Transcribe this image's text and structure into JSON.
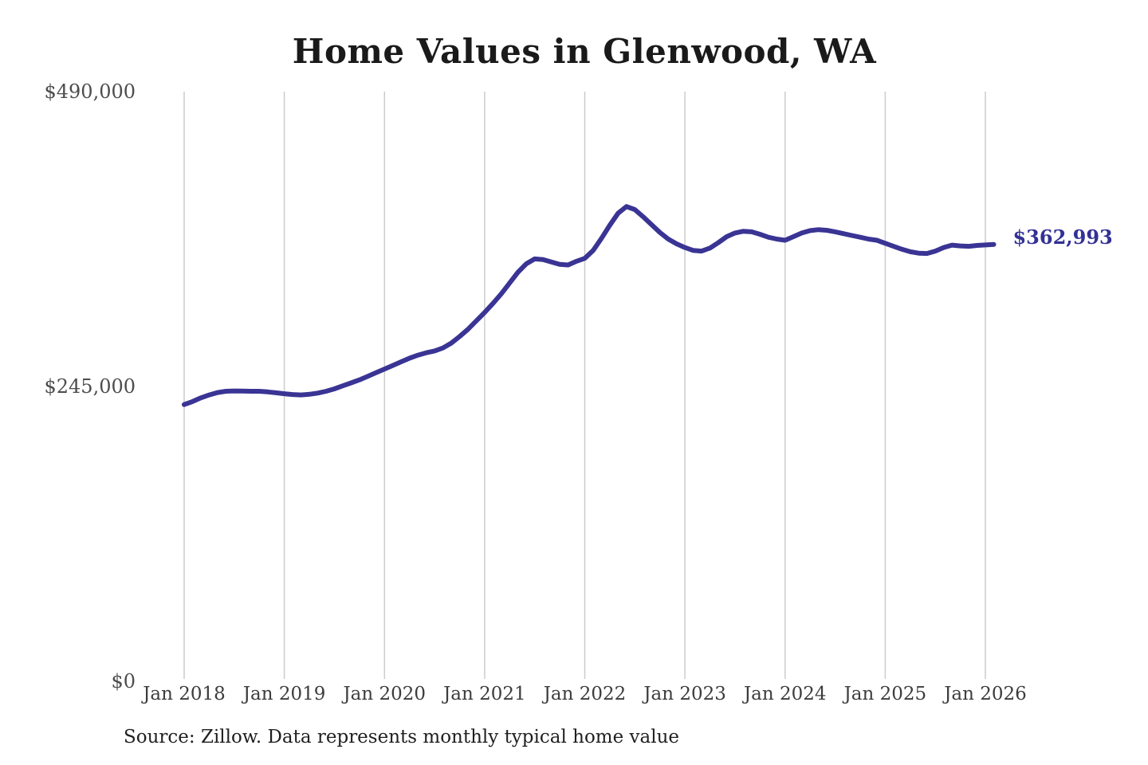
{
  "chart_data": {
    "type": "line",
    "title": "Home Values in Glenwood, WA",
    "series_name": "Monthly typical home value",
    "x": [
      "2018-01",
      "2018-02",
      "2018-03",
      "2018-04",
      "2018-05",
      "2018-06",
      "2018-07",
      "2018-08",
      "2018-09",
      "2018-10",
      "2018-11",
      "2018-12",
      "2019-01",
      "2019-02",
      "2019-03",
      "2019-04",
      "2019-05",
      "2019-06",
      "2019-07",
      "2019-08",
      "2019-09",
      "2019-10",
      "2019-11",
      "2019-12",
      "2020-01",
      "2020-02",
      "2020-03",
      "2020-04",
      "2020-05",
      "2020-06",
      "2020-07",
      "2020-08",
      "2020-09",
      "2020-10",
      "2020-11",
      "2020-12",
      "2021-01",
      "2021-02",
      "2021-03",
      "2021-04",
      "2021-05",
      "2021-06",
      "2021-07",
      "2021-08",
      "2021-09",
      "2021-10",
      "2021-11",
      "2021-12",
      "2022-01",
      "2022-02",
      "2022-03",
      "2022-04",
      "2022-05",
      "2022-06",
      "2022-07",
      "2022-08",
      "2022-09",
      "2022-10",
      "2022-11",
      "2022-12",
      "2023-01",
      "2023-02",
      "2023-03",
      "2023-04",
      "2023-05",
      "2023-06",
      "2023-07",
      "2023-08",
      "2023-09",
      "2023-10",
      "2023-11",
      "2023-12",
      "2024-01",
      "2024-02",
      "2024-03",
      "2024-04",
      "2024-05",
      "2024-06",
      "2024-07",
      "2024-08",
      "2024-09",
      "2024-10",
      "2024-11",
      "2024-12",
      "2025-01",
      "2025-02",
      "2025-03",
      "2025-04",
      "2025-05",
      "2025-06",
      "2025-07",
      "2025-08",
      "2025-09",
      "2025-10",
      "2025-11",
      "2025-12",
      "2026-01",
      "2026-02"
    ],
    "values": [
      230000,
      232500,
      235500,
      238000,
      240000,
      241000,
      241300,
      241200,
      241000,
      241000,
      240500,
      239800,
      239000,
      238300,
      238000,
      238500,
      239500,
      241000,
      243000,
      245500,
      248000,
      250500,
      253500,
      256500,
      259500,
      262500,
      265500,
      268500,
      271000,
      273000,
      274500,
      277000,
      281000,
      286500,
      292500,
      299500,
      306500,
      314000,
      322000,
      331000,
      340000,
      347000,
      351000,
      350500,
      348500,
      346500,
      346000,
      349000,
      351500,
      358000,
      368000,
      379000,
      389000,
      394500,
      392000,
      386000,
      379500,
      373000,
      367500,
      363500,
      360500,
      358000,
      357500,
      360000,
      364500,
      369500,
      372500,
      374000,
      373500,
      371500,
      369000,
      367500,
      366500,
      369500,
      372500,
      374500,
      375300,
      374800,
      373500,
      372000,
      370500,
      369000,
      367500,
      366500,
      364000,
      361500,
      359000,
      357000,
      355800,
      355500,
      357500,
      360500,
      362500,
      361800,
      361500,
      362200,
      362600,
      362993
    ],
    "ylim": [
      0,
      490000
    ],
    "yticks": [
      {
        "label": "$490,000",
        "value": 490000
      },
      {
        "label": "$245,000",
        "value": 245000
      },
      {
        "label": "$0",
        "value": 0
      }
    ],
    "xticks": [
      "Jan 2018",
      "Jan 2019",
      "Jan 2020",
      "Jan 2021",
      "Jan 2022",
      "Jan 2023",
      "Jan 2024",
      "Jan 2025",
      "Jan 2026"
    ],
    "grid": "vertical-only",
    "legend": "none",
    "end_label": "$362,993",
    "end_value": 362993,
    "source": "Source: Zillow. Data represents monthly typical home value",
    "line_color": "#3a3494",
    "grid_color": "#cccccc",
    "end_label_color": "#333194",
    "title_color": "#1a1a1a",
    "tick_label_color": "#3d3d3d"
  }
}
